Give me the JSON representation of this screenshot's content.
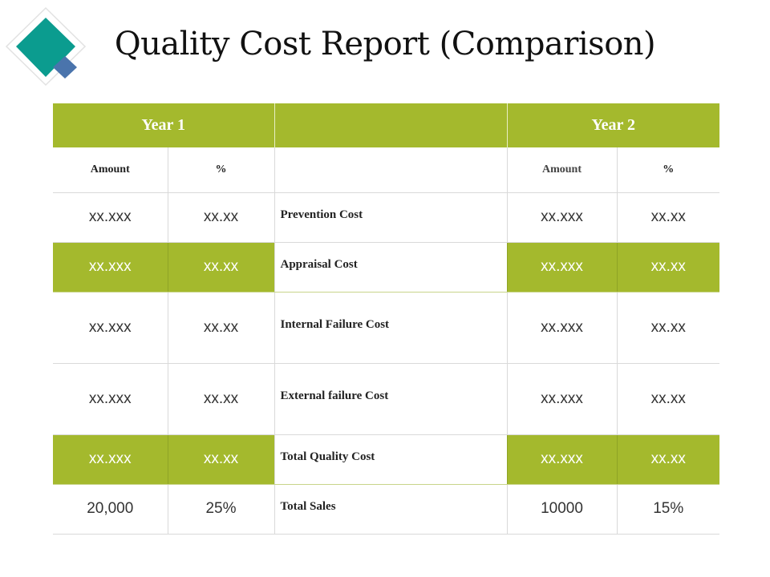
{
  "title": "Quality Cost Report (Comparison)",
  "logo": {
    "icon": "diamond-logo-icon",
    "colors": {
      "main": "#0b9c8f",
      "accent": "#4a74ac"
    }
  },
  "accent_color": "#a4b92d",
  "table": {
    "year1": "Year 1",
    "year2": "Year 2",
    "headers": {
      "amount": "Amount",
      "percent": "%"
    },
    "rows": [
      {
        "label": "Prevention Cost",
        "y1_amount": "xx.xxx",
        "y1_pct": "xx.xx",
        "y2_amount": "xx.xxx",
        "y2_pct": "xx.xx"
      },
      {
        "label": "Appraisal Cost",
        "y1_amount": "xx.xxx",
        "y1_pct": "xx.xx",
        "y2_amount": "xx.xxx",
        "y2_pct": "xx.xx"
      },
      {
        "label": "Internal Failure Cost",
        "y1_amount": "xx.xxx",
        "y1_pct": "xx.xx",
        "y2_amount": "xx.xxx",
        "y2_pct": "xx.xx"
      },
      {
        "label": "External failure Cost",
        "y1_amount": "xx.xxx",
        "y1_pct": "xx.xx",
        "y2_amount": "xx.xxx",
        "y2_pct": "xx.xx"
      },
      {
        "label": "Total Quality Cost",
        "y1_amount": "xx.xxx",
        "y1_pct": "xx.xx",
        "y2_amount": "xx.xxx",
        "y2_pct": "xx.xx"
      },
      {
        "label": "Total Sales",
        "y1_amount": "20,000",
        "y1_pct": "25%",
        "y2_amount": "10000",
        "y2_pct": "15%"
      }
    ]
  }
}
